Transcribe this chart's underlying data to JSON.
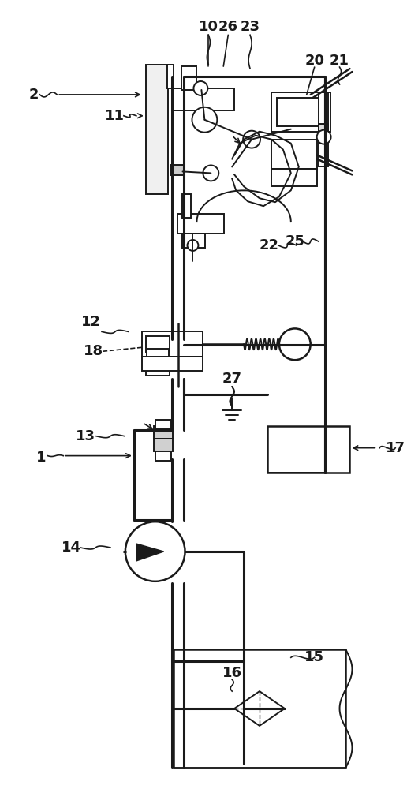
{
  "bg_color": "#ffffff",
  "lc": "#1a1a1a",
  "fig_w": 5.16,
  "fig_h": 10.0,
  "dpi": 100
}
